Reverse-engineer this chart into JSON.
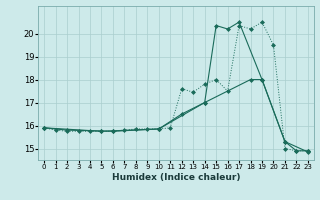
{
  "xlabel": "Humidex (Indice chaleur)",
  "ylabel": "",
  "background_color": "#cdeaea",
  "line_color": "#1a6b5a",
  "grid_color": "#aacece",
  "xlim": [
    -0.5,
    23.5
  ],
  "ylim": [
    14.5,
    21.2
  ],
  "xticks": [
    0,
    1,
    2,
    3,
    4,
    5,
    6,
    7,
    8,
    9,
    10,
    11,
    12,
    13,
    14,
    15,
    16,
    17,
    18,
    19,
    20,
    21,
    22,
    23
  ],
  "yticks": [
    15,
    16,
    17,
    18,
    19,
    20
  ],
  "series1_x": [
    0,
    1,
    2,
    3,
    4,
    5,
    6,
    7,
    8,
    9,
    10,
    11,
    12,
    13,
    14,
    15,
    16,
    17,
    18,
    19,
    20,
    21,
    22,
    23
  ],
  "series1_y": [
    15.9,
    15.8,
    15.75,
    15.75,
    15.75,
    15.75,
    15.75,
    15.8,
    15.85,
    15.85,
    15.85,
    15.9,
    17.6,
    17.45,
    17.8,
    18.0,
    17.5,
    20.35,
    20.2,
    20.5,
    19.5,
    15.0,
    14.9,
    14.9
  ],
  "series2_x": [
    0,
    2,
    6,
    10,
    12,
    14,
    15,
    16,
    17,
    19,
    21,
    22,
    23
  ],
  "series2_y": [
    15.9,
    15.8,
    15.75,
    15.85,
    16.5,
    17.0,
    20.35,
    20.2,
    20.5,
    18.0,
    15.3,
    14.9,
    14.9
  ],
  "series3_x": [
    0,
    5,
    10,
    14,
    18,
    19,
    21,
    23
  ],
  "series3_y": [
    15.9,
    15.75,
    15.85,
    17.0,
    18.0,
    18.0,
    15.3,
    14.85
  ]
}
